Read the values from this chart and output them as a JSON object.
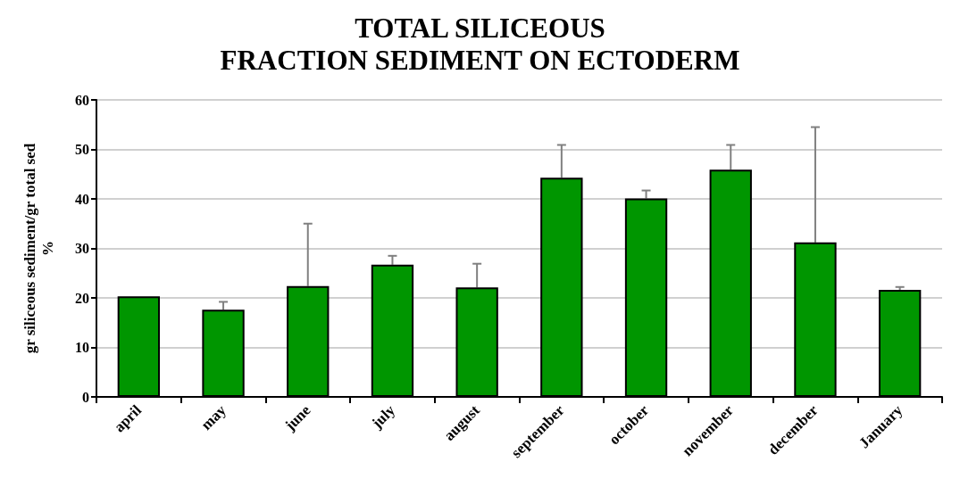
{
  "chart_data": {
    "type": "bar",
    "title": "TOTAL SILICEOUS\nFRACTION SEDIMENT ON ECTODERM",
    "ylabel": "gr siliceous sediment/gr total sed\n%",
    "categories": [
      "april",
      "may",
      "june",
      "july",
      "august",
      "september",
      "october",
      "november",
      "december",
      "January"
    ],
    "values": [
      20.3,
      17.6,
      22.4,
      26.7,
      22.1,
      44.3,
      40.1,
      45.9,
      31.2,
      21.6
    ],
    "errors": [
      null,
      [
        17.6,
        19.2
      ],
      [
        22.4,
        35.0
      ],
      [
        26.7,
        28.5
      ],
      [
        22.1,
        26.9
      ],
      [
        44.3,
        50.9
      ],
      [
        40.1,
        41.7
      ],
      [
        45.9,
        50.9
      ],
      [
        31.2,
        54.5
      ],
      [
        21.6,
        22.2
      ]
    ],
    "color": "#009600",
    "ylim": [
      0,
      60
    ],
    "yticks": [
      0,
      10,
      20,
      30,
      40,
      50,
      60
    ],
    "grid": "y"
  }
}
